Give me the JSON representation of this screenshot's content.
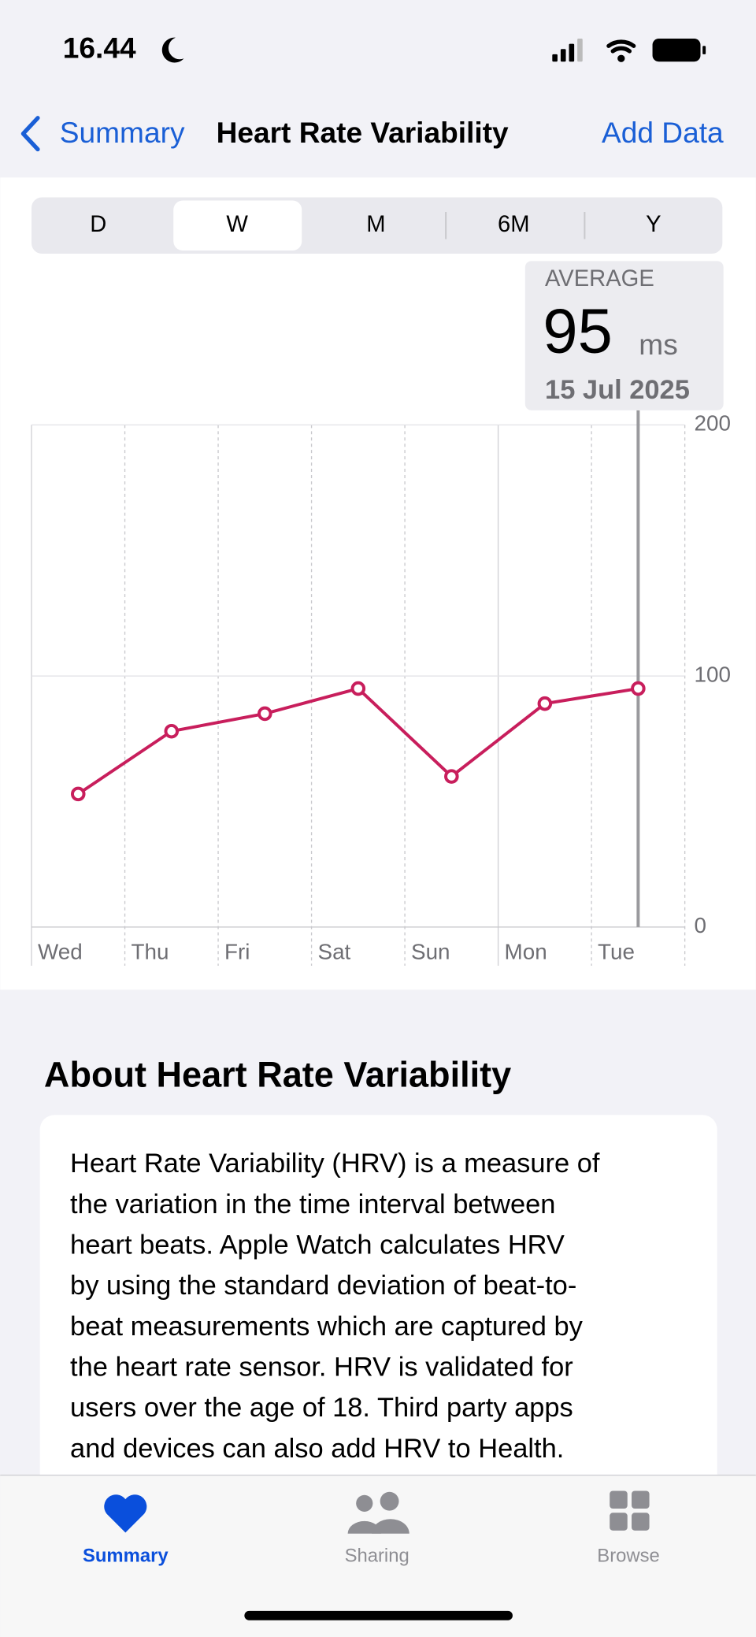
{
  "status_bar": {
    "time": "16.44"
  },
  "nav": {
    "back": "Summary",
    "title": "Heart Rate Variability",
    "action": "Add Data"
  },
  "segments": [
    "D",
    "W",
    "M",
    "6M",
    "Y"
  ],
  "chart_data": {
    "type": "line",
    "categories": [
      "Wed",
      "Thu",
      "Fri",
      "Sat",
      "Sun",
      "Mon",
      "Tue"
    ],
    "values": [
      53,
      78,
      85,
      95,
      60,
      89,
      95
    ],
    "color": "#c81e5c",
    "ylim": [
      0,
      200
    ],
    "yticks": [
      0,
      100,
      200
    ],
    "callout": {
      "label": "AVERAGE",
      "value": 95,
      "unit": "ms",
      "date": "15 Jul 2025"
    }
  },
  "about": {
    "title": "About Heart Rate Variability",
    "lines": [
      "Heart Rate Variability (HRV) is a measure of",
      "the variation in the time interval between",
      "heart beats. Apple Watch calculates HRV",
      "by using the standard deviation of beat-to-",
      "beat measurements which are captured by",
      "the heart rate sensor. HRV is validated for",
      "users over the age of 18. Third party apps",
      "and devices can also add HRV to Health."
    ]
  },
  "tab_bar": {
    "items": [
      "Summary",
      "Sharing",
      "Browse"
    ]
  }
}
